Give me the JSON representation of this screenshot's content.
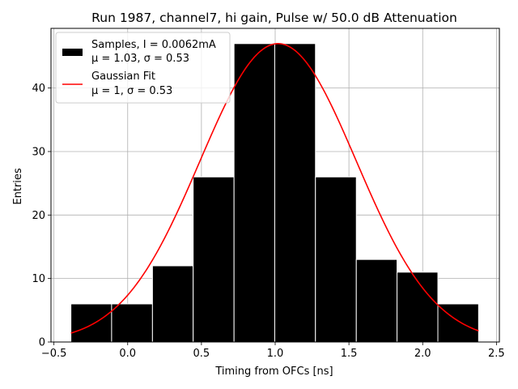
{
  "chart_data": {
    "type": "bar",
    "title": "Run 1987, channel7, hi gain, Pulse w/ 50.0 dB Attenuation",
    "xlabel": "Timing from OFCs [ns]",
    "ylabel": "Entries",
    "xlim": [
      -0.52,
      2.52
    ],
    "ylim": [
      0,
      49.4
    ],
    "xticks": [
      -0.5,
      0.0,
      0.5,
      1.0,
      1.5,
      2.0,
      2.5
    ],
    "xtick_labels": [
      "−0.5",
      "0.0",
      "0.5",
      "1.0",
      "1.5",
      "2.0",
      "2.5"
    ],
    "yticks": [
      0,
      10,
      20,
      30,
      40
    ],
    "ytick_labels": [
      "0",
      "10",
      "20",
      "30",
      "40"
    ],
    "grid": true,
    "histogram": {
      "name": "Samples, I = 0.0062mA",
      "stats": "μ = 1.03, σ = 0.53",
      "color": "#000000",
      "edge_color": "#ffffff",
      "bin_edges": [
        -0.385,
        -0.109,
        0.168,
        0.444,
        0.721,
        0.997,
        1.273,
        1.55,
        1.826,
        2.103,
        2.379
      ],
      "counts": [
        6,
        6,
        12,
        26,
        47,
        47,
        26,
        13,
        11,
        6
      ]
    },
    "fit": {
      "name": "Gaussian Fit",
      "stats": "μ = 1, σ = 0.53",
      "color": "#ff0000",
      "type": "gaussian",
      "mu": 1.02,
      "sigma": 0.53,
      "amplitude": 47,
      "x_range": [
        -0.385,
        2.379
      ]
    },
    "legend_placement": "top-left"
  }
}
